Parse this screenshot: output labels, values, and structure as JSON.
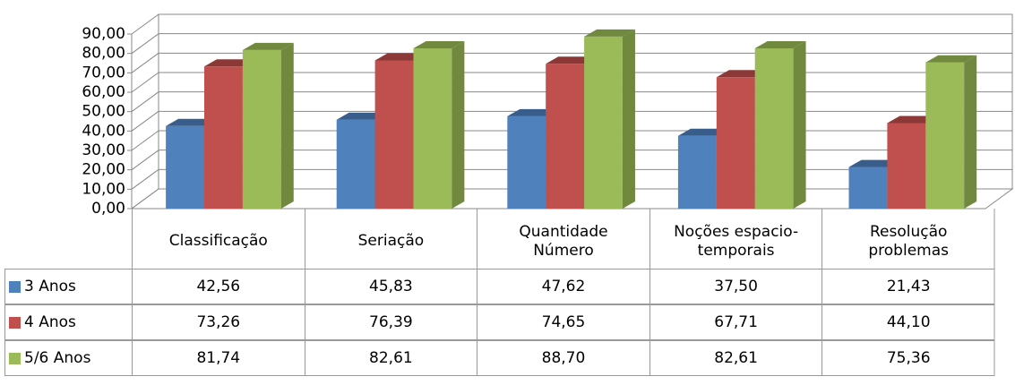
{
  "chart_data": {
    "type": "bar3d",
    "categories": [
      "Classificação",
      "Seriação",
      "Quantidade Número",
      "Noções espacio-temporais",
      "Resolução problemas"
    ],
    "series": [
      {
        "name": "3 Anos",
        "color": "#4f81bd",
        "side": "#385d8a",
        "values": [
          42.56,
          45.83,
          47.62,
          37.5,
          21.43
        ],
        "value_labels": [
          "42,56",
          "45,83",
          "47,62",
          "37,50",
          "21,43"
        ]
      },
      {
        "name": "4 Anos",
        "color": "#c0504d",
        "side": "#8c3836",
        "values": [
          73.26,
          76.39,
          74.65,
          67.71,
          44.1
        ],
        "value_labels": [
          "73,26",
          "76,39",
          "74,65",
          "67,71",
          "44,10"
        ]
      },
      {
        "name": "5/6 Anos",
        "color": "#9bbb59",
        "side": "#71893f",
        "values": [
          81.74,
          82.61,
          88.7,
          82.61,
          75.36
        ],
        "value_labels": [
          "81,74",
          "82,61",
          "88,70",
          "82,61",
          "75,36"
        ]
      }
    ],
    "ylim": [
      0,
      90
    ],
    "yticks": [
      {
        "value": 0,
        "label": "0,00"
      },
      {
        "value": 10,
        "label": "10,00"
      },
      {
        "value": 20,
        "label": "20,00"
      },
      {
        "value": 30,
        "label": "30,00"
      },
      {
        "value": 40,
        "label": "40,00"
      },
      {
        "value": 50,
        "label": "50,00"
      },
      {
        "value": 60,
        "label": "60,00"
      },
      {
        "value": 70,
        "label": "70,00"
      },
      {
        "value": 80,
        "label": "80,00"
      },
      {
        "value": 90,
        "label": "90,00"
      }
    ],
    "grid": true,
    "legend": "table"
  }
}
